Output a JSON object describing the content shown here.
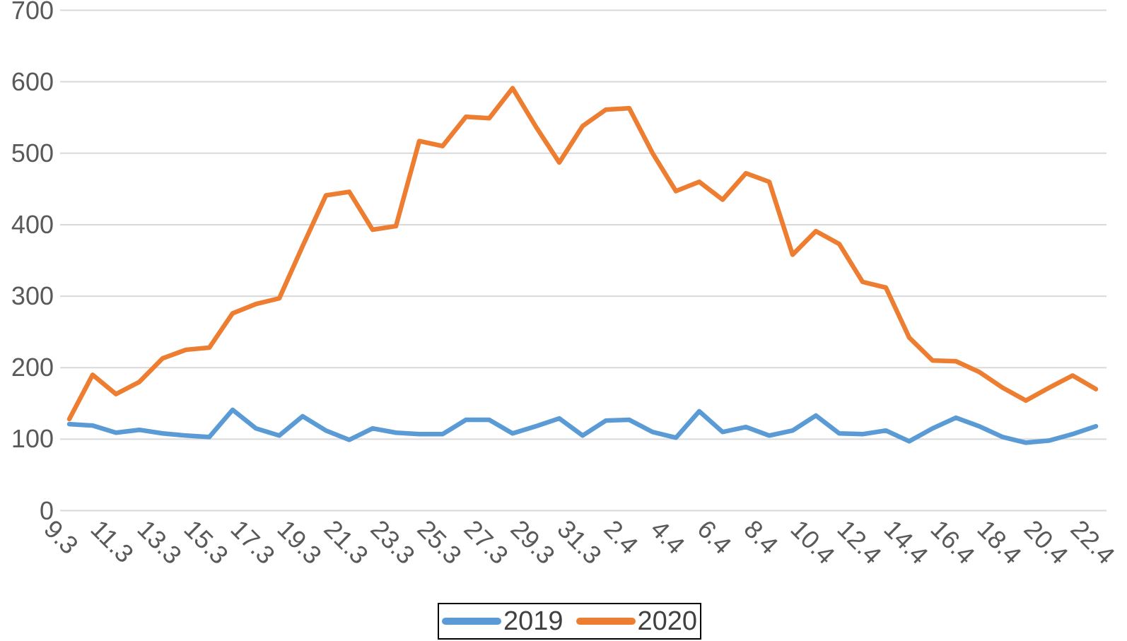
{
  "chart_data": {
    "type": "line",
    "title": "",
    "xlabel": "",
    "ylabel": "",
    "categories": [
      "9.3",
      "10.3",
      "11.3",
      "12.3",
      "13.3",
      "14.3",
      "15.3",
      "16.3",
      "17.3",
      "18.3",
      "19.3",
      "20.3",
      "21.3",
      "22.3",
      "23.3",
      "24.3",
      "25.3",
      "26.3",
      "27.3",
      "28.3",
      "29.3",
      "30.3",
      "31.3",
      "1.4",
      "2.4",
      "3.4",
      "4.4",
      "5.4",
      "6.4",
      "7.4",
      "8.4",
      "9.4",
      "10.4",
      "11.4",
      "12.4",
      "13.4",
      "14.4",
      "15.4",
      "16.4",
      "17.4",
      "18.4",
      "19.4",
      "20.4",
      "21.4",
      "22.4"
    ],
    "x_tick_labels_shown": [
      "9.3",
      "11.3",
      "13.3",
      "15.3",
      "17.3",
      "19.3",
      "21.3",
      "23.3",
      "25.3",
      "27.3",
      "29.3",
      "31.3",
      "2.4",
      "4.4",
      "6.4",
      "8.4",
      "10.4",
      "12.4",
      "14.4",
      "16.4",
      "18.4",
      "20.4",
      "22.4"
    ],
    "x_tick_every": 2,
    "series": [
      {
        "name": "2019",
        "color": "#5B9BD5",
        "values": [
          121,
          119,
          109,
          113,
          108,
          105,
          103,
          141,
          115,
          105,
          132,
          112,
          99,
          115,
          109,
          107,
          107,
          127,
          127,
          108,
          118,
          129,
          105,
          126,
          127,
          110,
          102,
          139,
          110,
          117,
          105,
          112,
          133,
          108,
          107,
          112,
          97,
          115,
          130,
          118,
          103,
          95,
          98,
          107,
          118
        ]
      },
      {
        "name": "2020",
        "color": "#ED7D31",
        "values": [
          128,
          190,
          163,
          180,
          213,
          225,
          228,
          276,
          289,
          297,
          370,
          441,
          446,
          393,
          398,
          517,
          510,
          551,
          549,
          591,
          537,
          487,
          538,
          561,
          563,
          500,
          447,
          460,
          435,
          472,
          460,
          358,
          391,
          373,
          320,
          312,
          242,
          210,
          209,
          194,
          172,
          154,
          172,
          189,
          170
        ]
      }
    ],
    "ylim": [
      0,
      700
    ],
    "yticks": [
      0,
      100,
      200,
      300,
      400,
      500,
      600,
      700
    ],
    "grid": "horizontal",
    "gridline_color": "#D9D9D9",
    "axis_label_color": "#595959",
    "legend_position": "bottom-center",
    "legend_border_color": "#000000",
    "legend_text_color": "#404040",
    "background": "#FFFFFF"
  }
}
